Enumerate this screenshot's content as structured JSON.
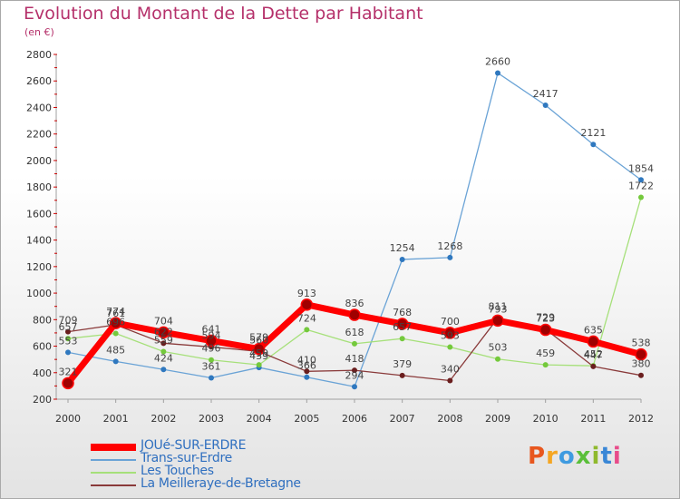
{
  "title": "Evolution du Montant de la Dette par Habitant",
  "subtitle": "(en €)",
  "logo": {
    "text": "Proxiti",
    "colors": [
      "#e8571e",
      "#f5a623",
      "#3f9be0",
      "#5abf3a",
      "#8fb92d",
      "#3a87d6",
      "#e84c8a"
    ]
  },
  "chart_data": {
    "type": "line",
    "categories": [
      "2000",
      "2001",
      "2002",
      "2003",
      "2004",
      "2005",
      "2006",
      "2007",
      "2008",
      "2009",
      "2010",
      "2011",
      "2012"
    ],
    "ylim": [
      200,
      2800
    ],
    "yticks": [
      "200",
      "400",
      "600",
      "800",
      "1000",
      "1200",
      "1400",
      "1600",
      "1800",
      "2000",
      "2200",
      "2400",
      "2600",
      "2800"
    ],
    "grid": false,
    "legend_position": "bottom-left",
    "series": [
      {
        "name": "JOUé-SUR-ERDRE",
        "color": "#ff0000",
        "marker_color": "#a00000",
        "width": 7,
        "values": [
          321,
          774,
          704,
          641,
          579,
          913,
          836,
          768,
          700,
          793,
          723,
          635,
          538
        ],
        "labels": [
          "321",
          "774",
          "704",
          "641",
          "579",
          "913",
          "836",
          "768",
          "700",
          "793",
          "723",
          "635",
          "538"
        ]
      },
      {
        "name": "Trans-sur-Erdre",
        "color": "#6aa3d6",
        "marker_color": "#2f78bf",
        "width": 1.3,
        "values": [
          553,
          485,
          424,
          361,
          439,
          366,
          294,
          1254,
          1268,
          2660,
          2417,
          2121,
          1854
        ],
        "labels": [
          "553",
          "485",
          "424",
          "361",
          "439",
          "366",
          "294",
          "1254",
          "1268",
          "2660",
          "2417",
          "2121",
          "1854"
        ]
      },
      {
        "name": "Les Touches",
        "color": "#a6e07a",
        "marker_color": "#74c93c",
        "width": 1.3,
        "values": [
          657,
          696,
          559,
          496,
          459,
          724,
          618,
          657,
          593,
          503,
          459,
          452,
          1722
        ],
        "labels": [
          "657",
          "696",
          "559",
          "496",
          "459",
          "724",
          "618",
          "657",
          "593",
          "503",
          "459",
          "452",
          "1722"
        ]
      },
      {
        "name": "La Meilleraye-de-Bretagne",
        "color": "#8a3a3a",
        "marker_color": "#6a1e1e",
        "width": 1.3,
        "values": [
          709,
          761,
          622,
          594,
          560,
          410,
          418,
          379,
          340,
          811,
          729,
          447,
          380
        ],
        "labels": [
          "709",
          "761",
          "622",
          "594",
          "560",
          "410",
          "418",
          "379",
          "340",
          "811",
          "729",
          "447",
          "380"
        ]
      }
    ]
  }
}
